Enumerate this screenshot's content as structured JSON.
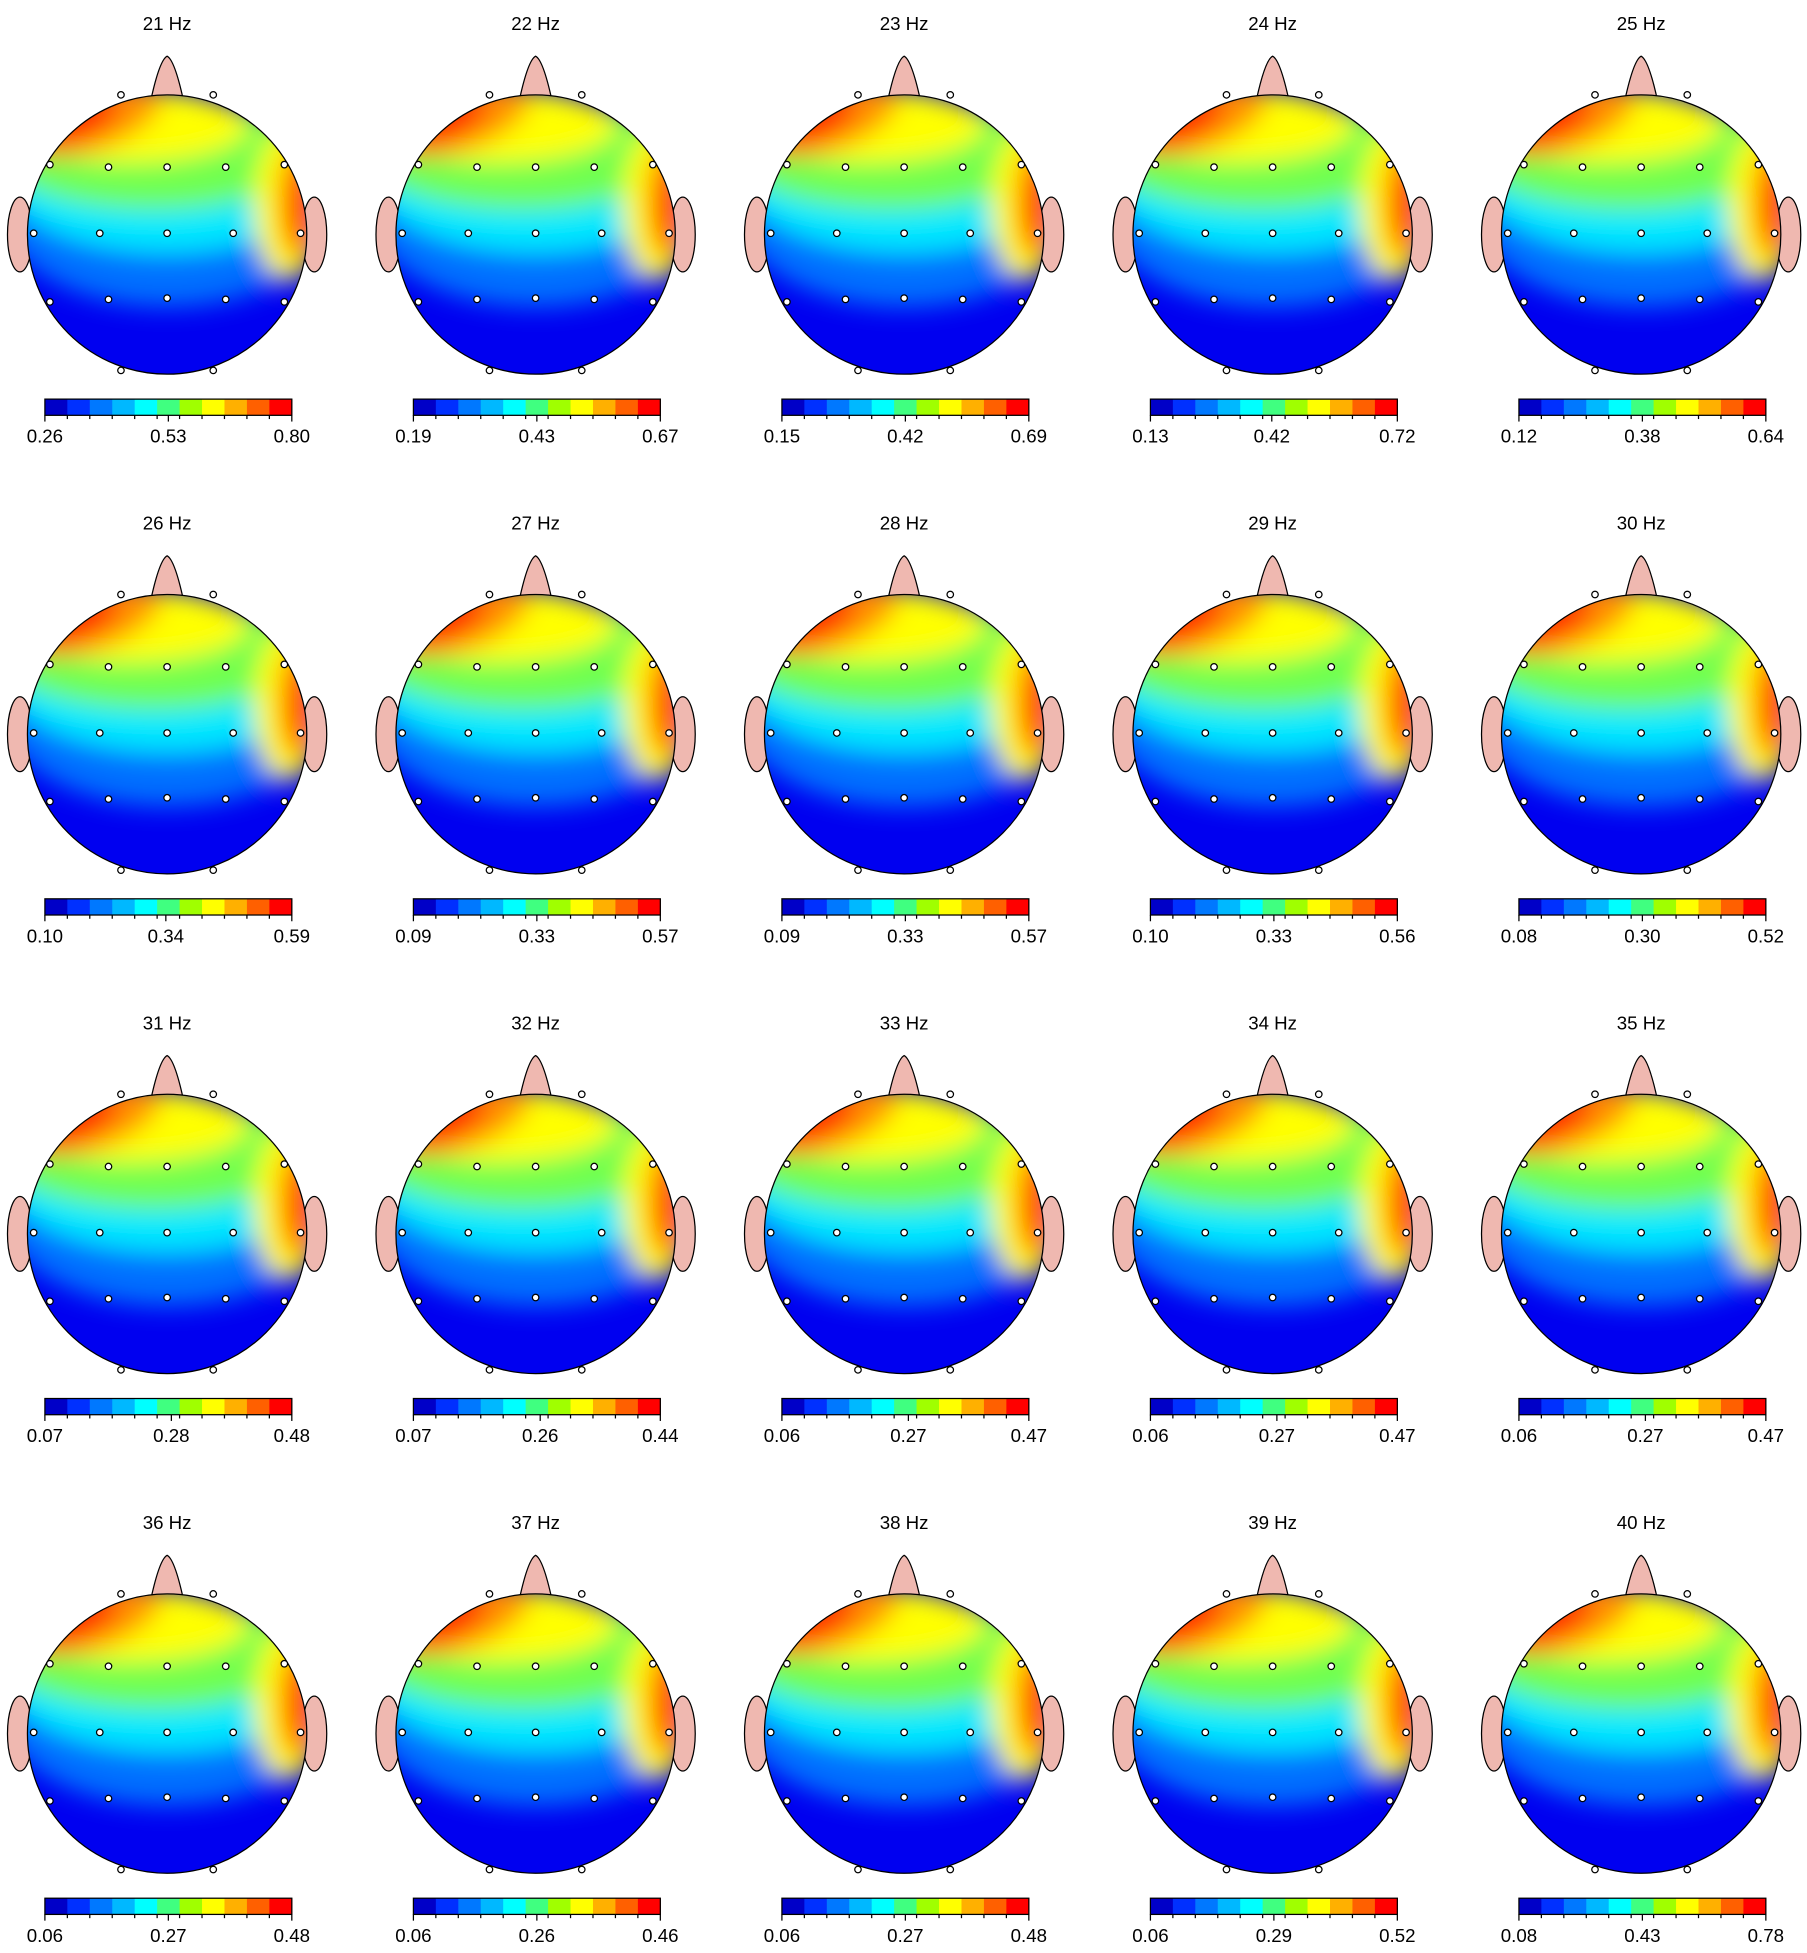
{
  "chart_data": [
    {
      "type": "topomap",
      "title": "21 Hz",
      "clim": [
        0.26,
        0.8
      ],
      "cticks": [
        0.26,
        0.53,
        {
          "value": 0.8,
          "label": "0.80"
        }
      ]
    },
    {
      "type": "topomap",
      "title": "22 Hz",
      "clim": [
        0.19,
        0.67
      ],
      "cticks": [
        0.19,
        0.43,
        0.67
      ]
    },
    {
      "type": "topomap",
      "title": "23 Hz",
      "clim": [
        0.15,
        0.69
      ],
      "cticks": [
        0.15,
        0.42,
        0.69
      ]
    },
    {
      "type": "topomap",
      "title": "24 Hz",
      "clim": [
        0.13,
        0.72
      ],
      "cticks": [
        0.13,
        0.42,
        0.72
      ]
    },
    {
      "type": "topomap",
      "title": "25 Hz",
      "clim": [
        0.12,
        0.64
      ],
      "cticks": [
        0.12,
        0.38,
        0.64
      ]
    },
    {
      "type": "topomap",
      "title": "26 Hz",
      "clim": [
        0.1,
        0.59
      ],
      "cticks": [
        {
          "value": 0.1,
          "label": "0.10"
        },
        0.34,
        0.59
      ]
    },
    {
      "type": "topomap",
      "title": "27 Hz",
      "clim": [
        0.09,
        0.57
      ],
      "cticks": [
        0.09,
        0.33,
        0.57
      ]
    },
    {
      "type": "topomap",
      "title": "28 Hz",
      "clim": [
        0.09,
        0.57
      ],
      "cticks": [
        0.09,
        0.33,
        0.57
      ]
    },
    {
      "type": "topomap",
      "title": "29 Hz",
      "clim": [
        0.1,
        0.56
      ],
      "cticks": [
        {
          "value": 0.1,
          "label": "0.10"
        },
        0.33,
        0.56
      ]
    },
    {
      "type": "topomap",
      "title": "30 Hz",
      "clim": [
        0.08,
        0.52
      ],
      "cticks": [
        0.08,
        {
          "value": 0.3,
          "label": "0.30"
        },
        0.52
      ]
    },
    {
      "type": "topomap",
      "title": "31 Hz",
      "clim": [
        0.07,
        0.48
      ],
      "cticks": [
        0.07,
        0.28,
        0.48
      ]
    },
    {
      "type": "topomap",
      "title": "32 Hz",
      "clim": [
        0.07,
        0.44
      ],
      "cticks": [
        0.07,
        0.26,
        0.44
      ]
    },
    {
      "type": "topomap",
      "title": "33 Hz",
      "clim": [
        0.06,
        0.47
      ],
      "cticks": [
        0.06,
        0.27,
        0.47
      ]
    },
    {
      "type": "topomap",
      "title": "34 Hz",
      "clim": [
        0.06,
        0.47
      ],
      "cticks": [
        0.06,
        0.27,
        0.47
      ]
    },
    {
      "type": "topomap",
      "title": "35 Hz",
      "clim": [
        0.06,
        0.47
      ],
      "cticks": [
        0.06,
        0.27,
        0.47
      ]
    },
    {
      "type": "topomap",
      "title": "36 Hz",
      "clim": [
        0.06,
        0.48
      ],
      "cticks": [
        0.06,
        0.27,
        0.48
      ]
    },
    {
      "type": "topomap",
      "title": "37 Hz",
      "clim": [
        0.06,
        0.46
      ],
      "cticks": [
        0.06,
        0.26,
        0.46
      ]
    },
    {
      "type": "topomap",
      "title": "38 Hz",
      "clim": [
        0.06,
        0.48
      ],
      "cticks": [
        0.06,
        0.27,
        0.48
      ]
    },
    {
      "type": "topomap",
      "title": "39 Hz",
      "clim": [
        0.06,
        0.52
      ],
      "cticks": [
        0.06,
        0.29,
        0.52
      ]
    },
    {
      "type": "topomap",
      "title": "40 Hz",
      "clim": [
        0.08,
        0.78
      ],
      "cticks": [
        0.08,
        0.43,
        0.78
      ]
    }
  ]
}
